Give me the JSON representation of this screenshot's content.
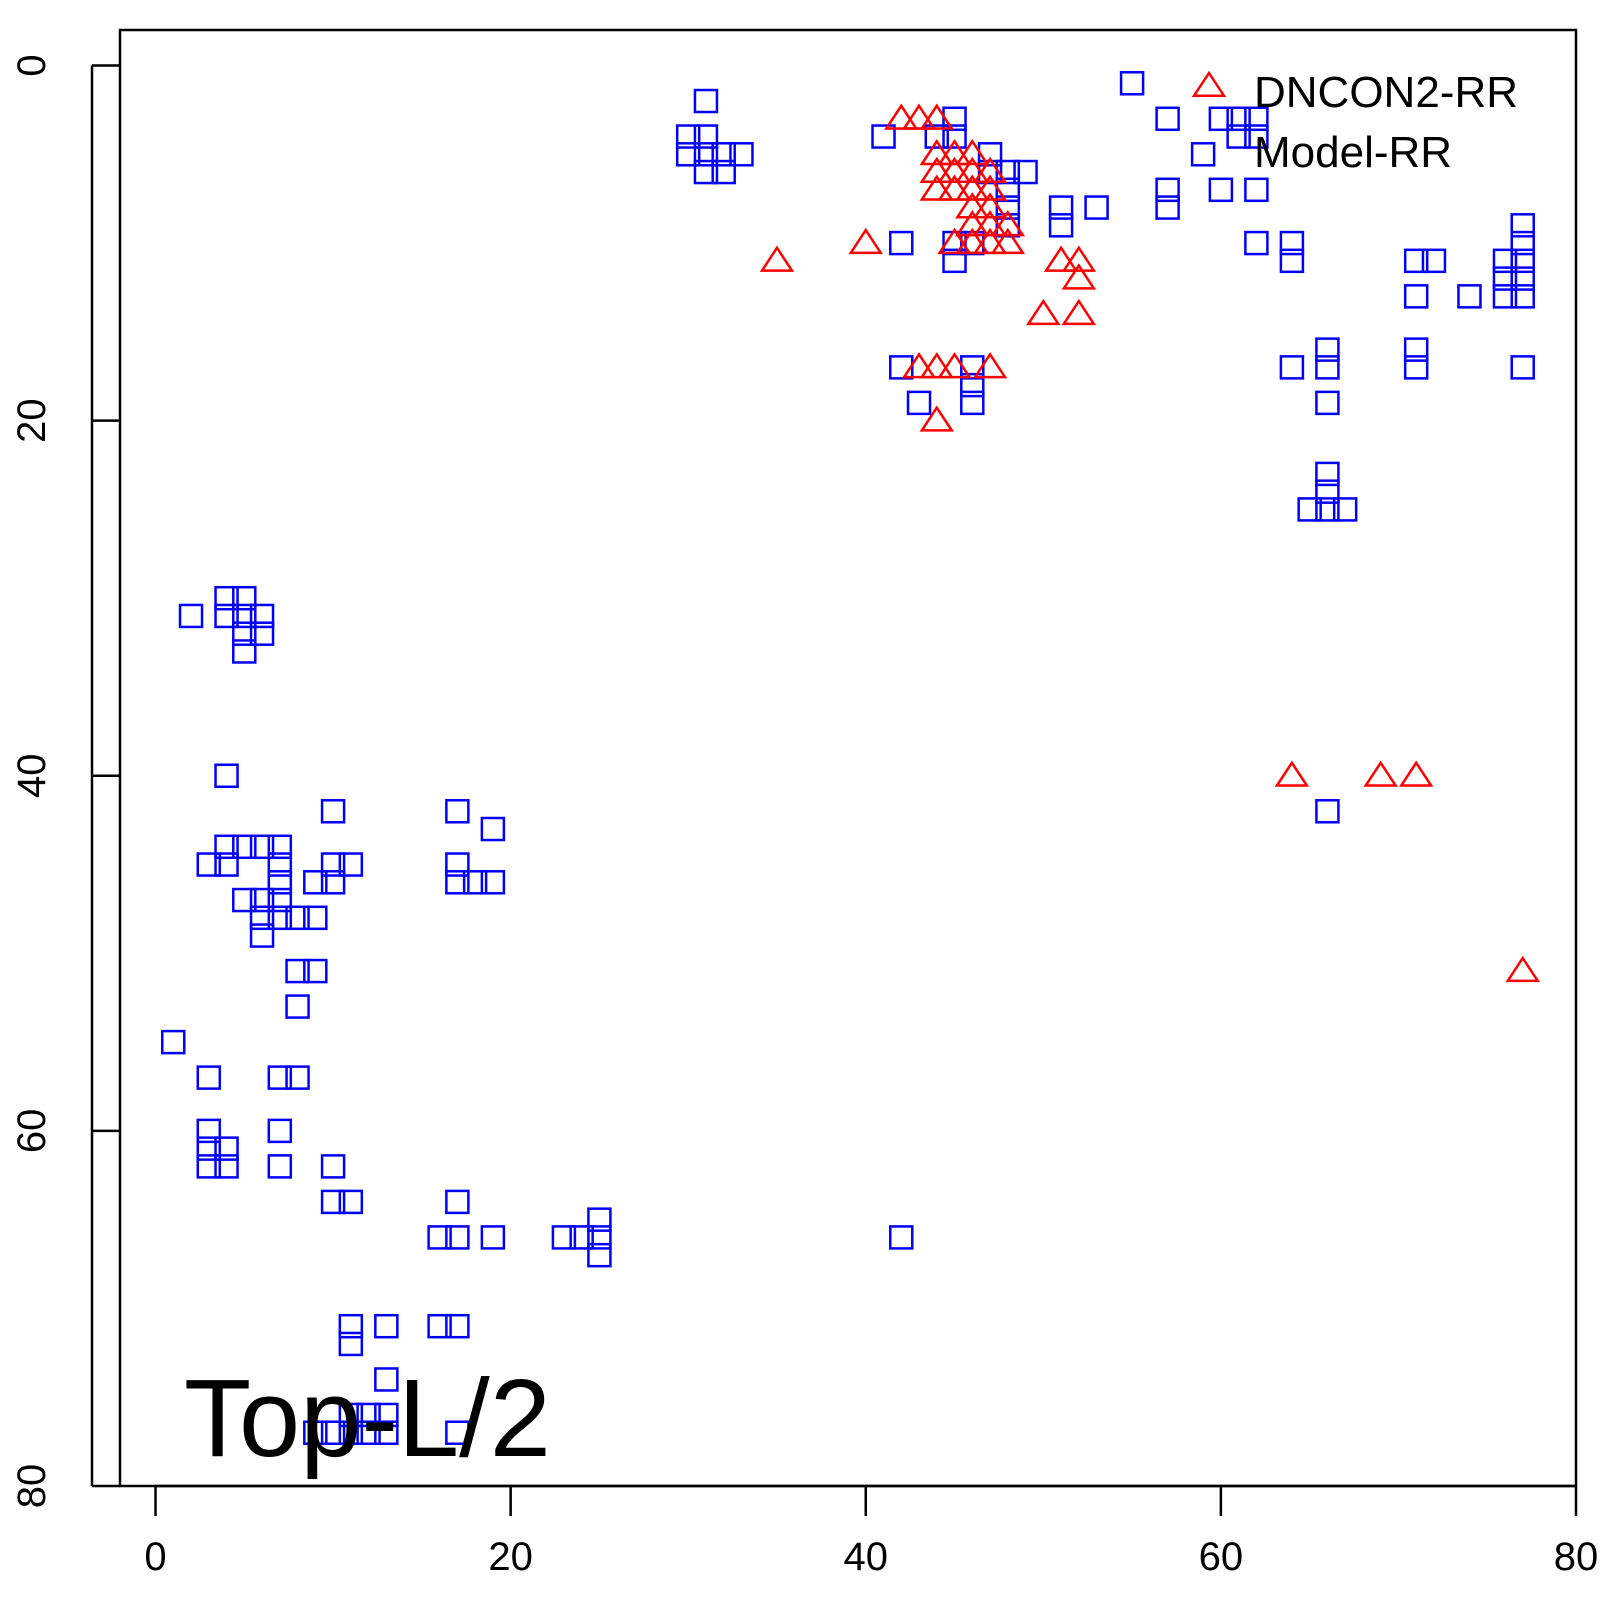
{
  "chart_data": {
    "type": "scatter",
    "title": "",
    "xlabel": "",
    "ylabel": "",
    "xlim": [
      -2,
      80
    ],
    "ylim": [
      80,
      -2
    ],
    "y_axis_reversed": true,
    "x_ticks": [
      0,
      20,
      40,
      60,
      80
    ],
    "y_ticks": [
      0,
      20,
      40,
      60,
      80
    ],
    "grid": false,
    "legend": {
      "position": "top-right",
      "entries": [
        "DNCON2-RR",
        "Model-RR"
      ]
    },
    "annotation": "Top-L/2",
    "colors": {
      "DNCON2-RR": "#ff0000",
      "Model-RR": "#0000ff"
    },
    "series": [
      {
        "name": "DNCON2-RR",
        "marker": "triangle",
        "color": "#ff0000",
        "points": [
          [
            42,
            3
          ],
          [
            43,
            3
          ],
          [
            44,
            3
          ],
          [
            44,
            5
          ],
          [
            45,
            5
          ],
          [
            46,
            5
          ],
          [
            44,
            6
          ],
          [
            45,
            6
          ],
          [
            46,
            6
          ],
          [
            47,
            6
          ],
          [
            44,
            7
          ],
          [
            45,
            7
          ],
          [
            46,
            7
          ],
          [
            47,
            7
          ],
          [
            46,
            8
          ],
          [
            47,
            8
          ],
          [
            46,
            9
          ],
          [
            47,
            9
          ],
          [
            48,
            9
          ],
          [
            45,
            10
          ],
          [
            46,
            10
          ],
          [
            47,
            10
          ],
          [
            48,
            10
          ],
          [
            40,
            10
          ],
          [
            35,
            11
          ],
          [
            51,
            11
          ],
          [
            52,
            11
          ],
          [
            52,
            12
          ],
          [
            50,
            14
          ],
          [
            52,
            14
          ],
          [
            43,
            17
          ],
          [
            44,
            17
          ],
          [
            45,
            17
          ],
          [
            47,
            17
          ],
          [
            44,
            20
          ],
          [
            64,
            40
          ],
          [
            69,
            40
          ],
          [
            71,
            40
          ],
          [
            77,
            51
          ]
        ]
      },
      {
        "name": "Model-RR",
        "marker": "square",
        "color": "#0000ff",
        "points": [
          [
            55,
            1
          ],
          [
            57,
            3
          ],
          [
            60,
            3
          ],
          [
            61,
            3
          ],
          [
            62,
            3
          ],
          [
            61,
            4
          ],
          [
            62,
            4
          ],
          [
            30,
            4
          ],
          [
            31,
            4
          ],
          [
            30,
            5
          ],
          [
            31,
            5
          ],
          [
            32,
            5
          ],
          [
            33,
            5
          ],
          [
            31,
            6
          ],
          [
            32,
            6
          ],
          [
            31,
            2
          ],
          [
            41,
            4
          ],
          [
            44,
            4
          ],
          [
            45,
            3
          ],
          [
            45,
            4
          ],
          [
            47,
            5
          ],
          [
            47,
            6
          ],
          [
            48,
            6
          ],
          [
            49,
            6
          ],
          [
            48,
            7
          ],
          [
            48,
            8
          ],
          [
            48,
            9
          ],
          [
            59,
            5
          ],
          [
            60,
            7
          ],
          [
            62,
            7
          ],
          [
            57,
            7
          ],
          [
            57,
            8
          ],
          [
            51,
            8
          ],
          [
            51,
            9
          ],
          [
            53,
            8
          ],
          [
            42,
            10
          ],
          [
            45,
            10
          ],
          [
            46,
            10
          ],
          [
            45,
            11
          ],
          [
            62,
            10
          ],
          [
            64,
            10
          ],
          [
            64,
            11
          ],
          [
            71,
            11
          ],
          [
            72,
            11
          ],
          [
            76,
            11
          ],
          [
            77,
            11
          ],
          [
            76,
            12
          ],
          [
            77,
            12
          ],
          [
            76,
            13
          ],
          [
            77,
            13
          ],
          [
            71,
            13
          ],
          [
            74,
            13
          ],
          [
            77,
            9
          ],
          [
            77,
            10
          ],
          [
            71,
            16
          ],
          [
            71,
            17
          ],
          [
            66,
            16
          ],
          [
            66,
            17
          ],
          [
            64,
            17
          ],
          [
            77,
            17
          ],
          [
            42,
            17
          ],
          [
            46,
            17
          ],
          [
            46,
            18
          ],
          [
            46,
            19
          ],
          [
            43,
            19
          ],
          [
            66,
            19
          ],
          [
            66,
            23
          ],
          [
            66,
            24
          ],
          [
            65,
            25
          ],
          [
            66,
            25
          ],
          [
            67,
            25
          ],
          [
            66,
            42
          ],
          [
            2,
            31
          ],
          [
            4,
            30
          ],
          [
            5,
            30
          ],
          [
            4,
            31
          ],
          [
            5,
            31
          ],
          [
            6,
            31
          ],
          [
            5,
            32
          ],
          [
            6,
            32
          ],
          [
            5,
            33
          ],
          [
            4,
            40
          ],
          [
            4,
            44
          ],
          [
            5,
            44
          ],
          [
            6,
            44
          ],
          [
            7,
            44
          ],
          [
            3,
            45
          ],
          [
            4,
            45
          ],
          [
            7,
            45
          ],
          [
            10,
            45
          ],
          [
            11,
            45
          ],
          [
            17,
            45
          ],
          [
            7,
            46
          ],
          [
            9,
            46
          ],
          [
            10,
            46
          ],
          [
            17,
            46
          ],
          [
            18,
            46
          ],
          [
            19,
            46
          ],
          [
            5,
            47
          ],
          [
            6,
            47
          ],
          [
            7,
            47
          ],
          [
            6,
            48
          ],
          [
            7,
            48
          ],
          [
            8,
            48
          ],
          [
            9,
            48
          ],
          [
            6,
            49
          ],
          [
            8,
            51
          ],
          [
            9,
            51
          ],
          [
            8,
            53
          ],
          [
            10,
            42
          ],
          [
            17,
            42
          ],
          [
            19,
            43
          ],
          [
            1,
            55
          ],
          [
            3,
            57
          ],
          [
            7,
            57
          ],
          [
            8,
            57
          ],
          [
            3,
            60
          ],
          [
            7,
            60
          ],
          [
            3,
            61
          ],
          [
            4,
            61
          ],
          [
            3,
            62
          ],
          [
            4,
            62
          ],
          [
            7,
            62
          ],
          [
            10,
            62
          ],
          [
            10,
            64
          ],
          [
            11,
            64
          ],
          [
            17,
            64
          ],
          [
            16,
            66
          ],
          [
            17,
            66
          ],
          [
            19,
            66
          ],
          [
            23,
            66
          ],
          [
            24,
            66
          ],
          [
            25,
            66
          ],
          [
            25,
            65
          ],
          [
            25,
            67
          ],
          [
            42,
            66
          ],
          [
            11,
            71
          ],
          [
            13,
            71
          ],
          [
            16,
            71
          ],
          [
            17,
            71
          ],
          [
            11,
            72
          ],
          [
            13,
            74
          ],
          [
            11,
            76
          ],
          [
            12,
            76
          ],
          [
            13,
            76
          ],
          [
            9,
            77
          ],
          [
            10,
            77
          ],
          [
            11,
            77
          ],
          [
            12,
            77
          ],
          [
            13,
            77
          ],
          [
            17,
            77
          ]
        ]
      }
    ]
  }
}
